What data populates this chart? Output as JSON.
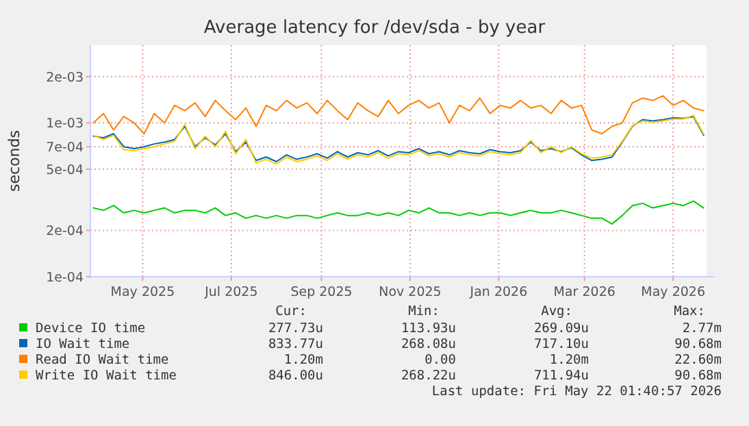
{
  "chart_data": {
    "type": "line",
    "title": "Average latency for /dev/sda - by year",
    "ylabel": "seconds",
    "x": [
      "2025-03-28",
      "2025-04-04",
      "2025-04-11",
      "2025-04-18",
      "2025-04-25",
      "2025-05-02",
      "2025-05-09",
      "2025-05-16",
      "2025-05-23",
      "2025-05-30",
      "2025-06-06",
      "2025-06-13",
      "2025-06-20",
      "2025-06-27",
      "2025-07-04",
      "2025-07-11",
      "2025-07-18",
      "2025-07-25",
      "2025-08-01",
      "2025-08-08",
      "2025-08-15",
      "2025-08-22",
      "2025-08-29",
      "2025-09-05",
      "2025-09-12",
      "2025-09-19",
      "2025-09-26",
      "2025-10-03",
      "2025-10-10",
      "2025-10-17",
      "2025-10-24",
      "2025-10-31",
      "2025-11-07",
      "2025-11-14",
      "2025-11-21",
      "2025-11-28",
      "2025-12-05",
      "2025-12-12",
      "2025-12-19",
      "2025-12-26",
      "2026-01-02",
      "2026-01-09",
      "2026-01-16",
      "2026-01-23",
      "2026-01-30",
      "2026-02-06",
      "2026-02-13",
      "2026-02-20",
      "2026-02-27",
      "2026-03-06",
      "2026-03-13",
      "2026-03-20",
      "2026-03-27",
      "2026-04-03",
      "2026-04-10",
      "2026-04-17",
      "2026-04-24",
      "2026-05-01",
      "2026-05-08",
      "2026-05-15",
      "2026-05-22"
    ],
    "series": [
      {
        "name": "Device IO time",
        "color": "#00cc00",
        "values": [
          0.00028,
          0.00027,
          0.00029,
          0.00026,
          0.00027,
          0.00026,
          0.00027,
          0.00028,
          0.00026,
          0.00027,
          0.00027,
          0.00026,
          0.00028,
          0.00025,
          0.00026,
          0.00024,
          0.00025,
          0.00024,
          0.00025,
          0.00024,
          0.00025,
          0.00025,
          0.00024,
          0.00025,
          0.00026,
          0.00025,
          0.00025,
          0.00026,
          0.00025,
          0.00026,
          0.00025,
          0.00027,
          0.00026,
          0.00028,
          0.00026,
          0.00026,
          0.00025,
          0.00026,
          0.00025,
          0.00026,
          0.00026,
          0.00025,
          0.00026,
          0.00027,
          0.00026,
          0.00026,
          0.00027,
          0.00026,
          0.00025,
          0.00024,
          0.00024,
          0.00022,
          0.00025,
          0.00029,
          0.0003,
          0.00028,
          0.00029,
          0.0003,
          0.00029,
          0.00031,
          0.00028
        ]
      },
      {
        "name": "IO Wait time",
        "color": "#0066b3",
        "values": [
          0.00082,
          0.0008,
          0.00085,
          0.0007,
          0.00068,
          0.0007,
          0.00073,
          0.00075,
          0.00078,
          0.00095,
          0.0007,
          0.0008,
          0.00072,
          0.00085,
          0.00065,
          0.00075,
          0.00057,
          0.0006,
          0.00056,
          0.00062,
          0.00058,
          0.0006,
          0.00063,
          0.00059,
          0.00065,
          0.0006,
          0.00064,
          0.00062,
          0.00066,
          0.00061,
          0.00065,
          0.00064,
          0.00068,
          0.00063,
          0.00065,
          0.00062,
          0.00066,
          0.00064,
          0.00063,
          0.00067,
          0.00065,
          0.00064,
          0.00066,
          0.00075,
          0.00066,
          0.00068,
          0.00065,
          0.00069,
          0.00062,
          0.00057,
          0.00058,
          0.0006,
          0.00075,
          0.00095,
          0.00105,
          0.00103,
          0.00105,
          0.00108,
          0.00107,
          0.0011,
          0.00083
        ]
      },
      {
        "name": "Read IO Wait time",
        "color": "#ff8000",
        "values": [
          0.001,
          0.00115,
          0.0009,
          0.0011,
          0.001,
          0.00085,
          0.00115,
          0.001,
          0.0013,
          0.0012,
          0.00135,
          0.0011,
          0.0014,
          0.0012,
          0.00105,
          0.00125,
          0.00095,
          0.0013,
          0.0012,
          0.0014,
          0.00125,
          0.00135,
          0.00115,
          0.0014,
          0.0012,
          0.00105,
          0.00135,
          0.0012,
          0.0011,
          0.0014,
          0.00115,
          0.0013,
          0.0014,
          0.00125,
          0.00135,
          0.001,
          0.0013,
          0.0012,
          0.00145,
          0.00115,
          0.0013,
          0.00125,
          0.0014,
          0.00125,
          0.0013,
          0.00115,
          0.0014,
          0.00125,
          0.0013,
          0.0009,
          0.00085,
          0.00095,
          0.001,
          0.00135,
          0.00145,
          0.0014,
          0.0015,
          0.0013,
          0.0014,
          0.00125,
          0.0012
        ]
      },
      {
        "name": "Write IO Wait time",
        "color": "#ffcc00",
        "values": [
          0.00083,
          0.00078,
          0.00083,
          0.00067,
          0.00066,
          0.00068,
          0.0007,
          0.00073,
          0.00076,
          0.00098,
          0.00068,
          0.00082,
          0.0007,
          0.00088,
          0.00063,
          0.00078,
          0.00055,
          0.00058,
          0.00054,
          0.0006,
          0.00056,
          0.00058,
          0.00061,
          0.00057,
          0.00063,
          0.00058,
          0.00062,
          0.0006,
          0.00064,
          0.00059,
          0.00063,
          0.00062,
          0.00066,
          0.00061,
          0.00063,
          0.0006,
          0.00064,
          0.00062,
          0.00061,
          0.00065,
          0.00063,
          0.00062,
          0.00064,
          0.00077,
          0.00064,
          0.0007,
          0.00064,
          0.0007,
          0.00063,
          0.00059,
          0.0006,
          0.00062,
          0.00076,
          0.00096,
          0.00103,
          0.00101,
          0.00103,
          0.00106,
          0.00106,
          0.00112,
          0.000846
        ]
      }
    ],
    "xlim": [
      "2025-03-26",
      "2026-05-24"
    ],
    "xticks": [
      {
        "value": "2025-05-01",
        "label": "May 2025"
      },
      {
        "value": "2025-07-01",
        "label": "Jul 2025"
      },
      {
        "value": "2025-09-01",
        "label": "Sep 2025"
      },
      {
        "value": "2025-11-01",
        "label": "Nov 2025"
      },
      {
        "value": "2026-01-01",
        "label": "Jan 2026"
      },
      {
        "value": "2026-03-01",
        "label": "Mar 2026"
      },
      {
        "value": "2026-05-01",
        "label": "May 2026"
      }
    ],
    "ylim": [
      0.0001,
      0.0032
    ],
    "yticks": [
      {
        "value": 0.0001,
        "label": "1e-04"
      },
      {
        "value": 0.0002,
        "label": "2e-04"
      },
      {
        "value": 0.0005,
        "label": "5e-04"
      },
      {
        "value": 0.0007,
        "label": "7e-04"
      },
      {
        "value": 0.001,
        "label": "1e-03"
      },
      {
        "value": 0.002,
        "label": "2e-03"
      }
    ],
    "log": "y",
    "grid": true,
    "legend": "bottom",
    "line_style": "solid",
    "marker": "none",
    "annotations": [
      "Cur:",
      "Min:",
      "Avg:",
      "Max:",
      "277.73u",
      "113.93u",
      "269.09u",
      "2.77m",
      "833.77u",
      "268.08u",
      "717.10u",
      "90.68m",
      "1.20m",
      "0.00",
      "1.20m",
      "22.60m",
      "846.00u",
      "268.22u",
      "711.94u",
      "90.68m",
      "Last update: Fri May 22 01:40:57 2026"
    ]
  }
}
